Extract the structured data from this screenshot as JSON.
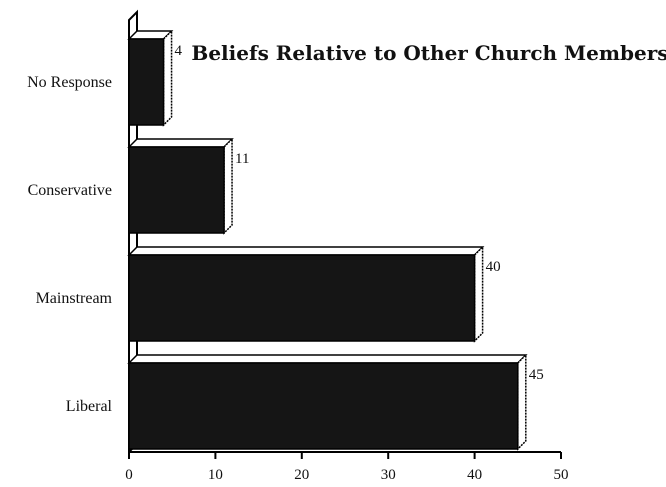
{
  "chart_data": {
    "type": "bar",
    "orientation": "horizontal",
    "title": "Beliefs Relative to Other Church Members",
    "categories": [
      "No Response",
      "Conservative",
      "Mainstream",
      "Liberal"
    ],
    "values": [
      4,
      11,
      40,
      45
    ],
    "value_labels": [
      "4",
      "11",
      "40",
      "45"
    ],
    "xlim": [
      0,
      50
    ],
    "xticks": [
      0,
      10,
      20,
      30,
      40,
      50
    ],
    "xtick_labels": [
      "0",
      "10",
      "20",
      "30",
      "40",
      "50"
    ],
    "xlabel": "",
    "ylabel": "",
    "grid": false,
    "legend": "none",
    "style": "3d",
    "colors": {
      "bar": "#151515",
      "bar_edge": "#000000",
      "bar_side": "#ffffff",
      "axis": "#000000"
    }
  }
}
